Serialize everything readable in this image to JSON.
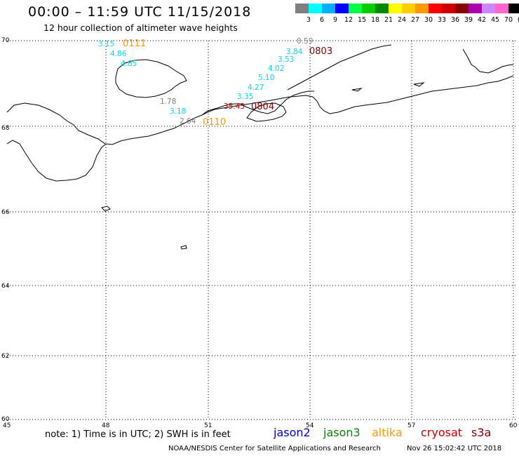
{
  "header": {
    "title": "00:00 – 11:59 UTC 11/15/2018",
    "subtitle": "12 hour collection of altimeter wave heights"
  },
  "scale": {
    "labels": [
      "3",
      "6",
      "9",
      "12",
      "15",
      "18",
      "21",
      "24",
      "27",
      "30",
      "33",
      "36",
      "39",
      "42",
      "45",
      "70"
    ],
    "unit": "(ft)",
    "colors": [
      "#808080",
      "#00ffff",
      "#00b0ff",
      "#0000ff",
      "#00ff44",
      "#00cc00",
      "#008800",
      "#ffff00",
      "#ffcc00",
      "#ff9900",
      "#ff0000",
      "#cc0000",
      "#880000",
      "#aa00aa",
      "#cc88ff",
      "#ff66cc",
      "#000000"
    ]
  },
  "axes": {
    "lat_labels": [
      "70",
      "68",
      "66",
      "64",
      "62",
      "60"
    ],
    "lon_labels": [
      "45",
      "48",
      "51",
      "54",
      "57",
      "60"
    ]
  },
  "observations": [
    {
      "text": "3.15",
      "color": "#00d8e8"
    },
    {
      "text": "0111",
      "color": "#ff9900"
    },
    {
      "text": "4.86",
      "color": "#00d8e8"
    },
    {
      "text": "4.85",
      "color": "#00d8e8"
    },
    {
      "text": "1.78",
      "color": "#808080"
    },
    {
      "text": "3.18",
      "color": "#00d8e8"
    },
    {
      "text": "2.64",
      "color": "#808080"
    },
    {
      "text": "0110",
      "color": "#ff9900"
    },
    {
      "text": "0.59",
      "color": "#808080"
    },
    {
      "text": "3.84",
      "color": "#00d8e8"
    },
    {
      "text": "0803",
      "color": "#800000"
    },
    {
      "text": "3.53",
      "color": "#00d8e8"
    },
    {
      "text": "4.02",
      "color": "#00d8e8"
    },
    {
      "text": "5.10",
      "color": "#00d8e8"
    },
    {
      "text": "4.27",
      "color": "#00d8e8"
    },
    {
      "text": "3.35",
      "color": "#00d8e8"
    },
    {
      "text": "35.43",
      "color": "#c00000"
    },
    {
      "text": "0804",
      "color": "#800000"
    }
  ],
  "footer": {
    "note": "note: 1) Time is in UTC; 2) SWH is in feet",
    "legend": [
      {
        "name": "jason2",
        "color": "#0000cc"
      },
      {
        "name": "jason3",
        "color": "#008800"
      },
      {
        "name": "altika",
        "color": "#ff9900"
      },
      {
        "name": "cryosat",
        "color": "#cc0000"
      },
      {
        "name": "s3a",
        "color": "#800000"
      }
    ],
    "credit": "NOAA/NESDIS Center for Satellite Applications and Research",
    "timestamp": "Nov 26 15:02:42 UTC 2018"
  }
}
